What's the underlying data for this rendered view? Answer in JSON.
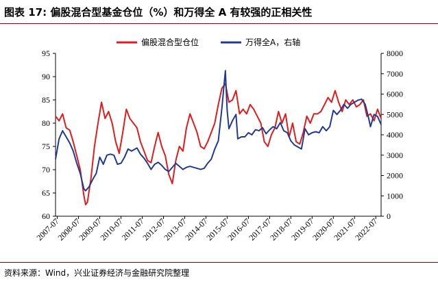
{
  "figure": {
    "title": "图表 17:  偏股混合型基金仓位（%）和万得全 A 有较强的正相关性",
    "source": "资料来源：Wind，兴业证券经济与金融研究院整理"
  },
  "colors": {
    "red": "#e31a1c",
    "blue": "#1f3a93",
    "rule": "#8b0000"
  },
  "chart_data": {
    "type": "line",
    "grid": false,
    "legend_position": "top-center",
    "x_tick_labels": [
      "2007-07",
      "2008-07",
      "2009-07",
      "2010-07",
      "2011-07",
      "2012-07",
      "2013-07",
      "2014-07",
      "2015-07",
      "2016-07",
      "2017-07",
      "2018-07",
      "2019-07",
      "2020-07",
      "2021-07",
      "2022-07"
    ],
    "xlim": [
      "2007-06",
      "2022-10"
    ],
    "ylim_left": [
      60,
      95
    ],
    "left_ticks": [
      60,
      65,
      70,
      75,
      80,
      85,
      90,
      95
    ],
    "ylim_right": [
      0,
      8000
    ],
    "right_ticks": [
      0,
      1000,
      2000,
      3000,
      4000,
      5000,
      6000,
      7000,
      8000
    ],
    "series": [
      {
        "name": "偏股混合型仓位",
        "axis": "left",
        "color": "#e31a1c",
        "points": [
          [
            "2007-06",
            81.5
          ],
          [
            "2007-08",
            80.5
          ],
          [
            "2007-10",
            82.0
          ],
          [
            "2007-12",
            79.0
          ],
          [
            "2008-02",
            78.5
          ],
          [
            "2008-04",
            76.0
          ],
          [
            "2008-06",
            73.0
          ],
          [
            "2008-08",
            70.0
          ],
          [
            "2008-10",
            64.5
          ],
          [
            "2008-11",
            62.5
          ],
          [
            "2008-12",
            63.0
          ],
          [
            "2009-02",
            68.0
          ],
          [
            "2009-04",
            75.0
          ],
          [
            "2009-06",
            80.0
          ],
          [
            "2009-08",
            84.5
          ],
          [
            "2009-10",
            81.0
          ],
          [
            "2009-12",
            82.5
          ],
          [
            "2010-02",
            80.0
          ],
          [
            "2010-04",
            76.0
          ],
          [
            "2010-06",
            73.5
          ],
          [
            "2010-08",
            78.0
          ],
          [
            "2010-10",
            83.0
          ],
          [
            "2010-12",
            81.0
          ],
          [
            "2011-02",
            80.0
          ],
          [
            "2011-04",
            79.0
          ],
          [
            "2011-06",
            76.0
          ],
          [
            "2011-08",
            74.0
          ],
          [
            "2011-10",
            72.0
          ],
          [
            "2011-12",
            71.5
          ],
          [
            "2012-02",
            75.0
          ],
          [
            "2012-04",
            78.0
          ],
          [
            "2012-06",
            75.0
          ],
          [
            "2012-08",
            73.0
          ],
          [
            "2012-10",
            69.0
          ],
          [
            "2012-12",
            67.0
          ],
          [
            "2013-02",
            72.0
          ],
          [
            "2013-04",
            75.0
          ],
          [
            "2013-06",
            74.0
          ],
          [
            "2013-08",
            79.0
          ],
          [
            "2013-10",
            82.0
          ],
          [
            "2013-12",
            80.0
          ],
          [
            "2014-02",
            78.0
          ],
          [
            "2014-04",
            75.0
          ],
          [
            "2014-06",
            74.5
          ],
          [
            "2014-08",
            76.0
          ],
          [
            "2014-10",
            78.0
          ],
          [
            "2014-12",
            80.0
          ],
          [
            "2015-02",
            84.0
          ],
          [
            "2015-04",
            87.5
          ],
          [
            "2015-06",
            88.5
          ],
          [
            "2015-08",
            84.5
          ],
          [
            "2015-10",
            85.0
          ],
          [
            "2015-12",
            87.0
          ],
          [
            "2016-02",
            82.0
          ],
          [
            "2016-04",
            83.0
          ],
          [
            "2016-06",
            82.0
          ],
          [
            "2016-08",
            84.0
          ],
          [
            "2016-10",
            83.0
          ],
          [
            "2016-12",
            81.5
          ],
          [
            "2017-02",
            80.0
          ],
          [
            "2017-04",
            76.0
          ],
          [
            "2017-06",
            75.0
          ],
          [
            "2017-08",
            77.5
          ],
          [
            "2017-10",
            79.0
          ],
          [
            "2017-12",
            82.5
          ],
          [
            "2018-02",
            80.0
          ],
          [
            "2018-04",
            82.0
          ],
          [
            "2018-06",
            77.0
          ],
          [
            "2018-08",
            80.0
          ],
          [
            "2018-10",
            76.0
          ],
          [
            "2018-12",
            75.5
          ],
          [
            "2019-02",
            78.0
          ],
          [
            "2019-04",
            81.5
          ],
          [
            "2019-06",
            80.0
          ],
          [
            "2019-08",
            82.0
          ],
          [
            "2019-10",
            82.0
          ],
          [
            "2019-12",
            82.5
          ],
          [
            "2020-02",
            84.0
          ],
          [
            "2020-04",
            85.5
          ],
          [
            "2020-06",
            84.5
          ],
          [
            "2020-08",
            87.0
          ],
          [
            "2020-10",
            84.5
          ],
          [
            "2020-12",
            82.5
          ],
          [
            "2021-02",
            85.0
          ],
          [
            "2021-04",
            84.0
          ],
          [
            "2021-06",
            85.0
          ],
          [
            "2021-08",
            83.5
          ],
          [
            "2021-10",
            84.0
          ],
          [
            "2021-12",
            85.0
          ],
          [
            "2022-02",
            81.5
          ],
          [
            "2022-04",
            82.0
          ],
          [
            "2022-06",
            80.5
          ],
          [
            "2022-08",
            83.0
          ],
          [
            "2022-10",
            81.0
          ]
        ]
      },
      {
        "name": "万得全A，右轴",
        "axis": "right",
        "color": "#1f3a93",
        "points": [
          [
            "2007-06",
            2800
          ],
          [
            "2007-08",
            3800
          ],
          [
            "2007-10",
            4200
          ],
          [
            "2007-12",
            3900
          ],
          [
            "2008-02",
            3600
          ],
          [
            "2008-04",
            3200
          ],
          [
            "2008-06",
            2600
          ],
          [
            "2008-08",
            2100
          ],
          [
            "2008-10",
            1350
          ],
          [
            "2008-11",
            1250
          ],
          [
            "2009-01",
            1450
          ],
          [
            "2009-03",
            1800
          ],
          [
            "2009-05",
            2100
          ],
          [
            "2009-07",
            2900
          ],
          [
            "2009-09",
            2550
          ],
          [
            "2009-11",
            3000
          ],
          [
            "2010-01",
            3050
          ],
          [
            "2010-03",
            3000
          ],
          [
            "2010-05",
            2550
          ],
          [
            "2010-07",
            2600
          ],
          [
            "2010-09",
            2900
          ],
          [
            "2010-11",
            3300
          ],
          [
            "2011-01",
            3200
          ],
          [
            "2011-04",
            3350
          ],
          [
            "2011-06",
            3050
          ],
          [
            "2011-08",
            2850
          ],
          [
            "2011-10",
            2600
          ],
          [
            "2011-12",
            2300
          ],
          [
            "2012-02",
            2550
          ],
          [
            "2012-04",
            2650
          ],
          [
            "2012-06",
            2500
          ],
          [
            "2012-08",
            2300
          ],
          [
            "2012-10",
            2200
          ],
          [
            "2012-12",
            2400
          ],
          [
            "2013-02",
            2600
          ],
          [
            "2013-04",
            2450
          ],
          [
            "2013-06",
            2300
          ],
          [
            "2013-08",
            2400
          ],
          [
            "2013-10",
            2450
          ],
          [
            "2013-12",
            2400
          ],
          [
            "2014-02",
            2350
          ],
          [
            "2014-04",
            2300
          ],
          [
            "2014-06",
            2350
          ],
          [
            "2014-08",
            2600
          ],
          [
            "2014-10",
            2800
          ],
          [
            "2014-12",
            3300
          ],
          [
            "2015-02",
            3700
          ],
          [
            "2015-04",
            5300
          ],
          [
            "2015-06",
            7150
          ],
          [
            "2015-07",
            5200
          ],
          [
            "2015-08",
            4300
          ],
          [
            "2015-10",
            4700
          ],
          [
            "2015-12",
            5000
          ],
          [
            "2016-01",
            3800
          ],
          [
            "2016-03",
            3900
          ],
          [
            "2016-05",
            3900
          ],
          [
            "2016-07",
            4100
          ],
          [
            "2016-09",
            4000
          ],
          [
            "2016-11",
            4250
          ],
          [
            "2017-01",
            4200
          ],
          [
            "2017-03",
            4350
          ],
          [
            "2017-05",
            4050
          ],
          [
            "2017-07",
            4250
          ],
          [
            "2017-09",
            4400
          ],
          [
            "2017-11",
            4300
          ],
          [
            "2018-01",
            4600
          ],
          [
            "2018-03",
            4200
          ],
          [
            "2018-05",
            4100
          ],
          [
            "2018-07",
            3700
          ],
          [
            "2018-09",
            3500
          ],
          [
            "2018-11",
            3400
          ],
          [
            "2019-01",
            3300
          ],
          [
            "2019-03",
            4300
          ],
          [
            "2019-05",
            4000
          ],
          [
            "2019-07",
            4100
          ],
          [
            "2019-09",
            4150
          ],
          [
            "2019-11",
            4100
          ],
          [
            "2020-01",
            4400
          ],
          [
            "2020-03",
            4200
          ],
          [
            "2020-05",
            4400
          ],
          [
            "2020-07",
            5200
          ],
          [
            "2020-09",
            5000
          ],
          [
            "2020-11",
            5200
          ],
          [
            "2021-01",
            5500
          ],
          [
            "2021-03",
            5300
          ],
          [
            "2021-05",
            5500
          ],
          [
            "2021-07",
            5600
          ],
          [
            "2021-09",
            5700
          ],
          [
            "2021-11",
            5750
          ],
          [
            "2022-01",
            5500
          ],
          [
            "2022-03",
            4800
          ],
          [
            "2022-04",
            4400
          ],
          [
            "2022-06",
            5000
          ],
          [
            "2022-08",
            4900
          ],
          [
            "2022-10",
            4500
          ]
        ]
      }
    ]
  }
}
